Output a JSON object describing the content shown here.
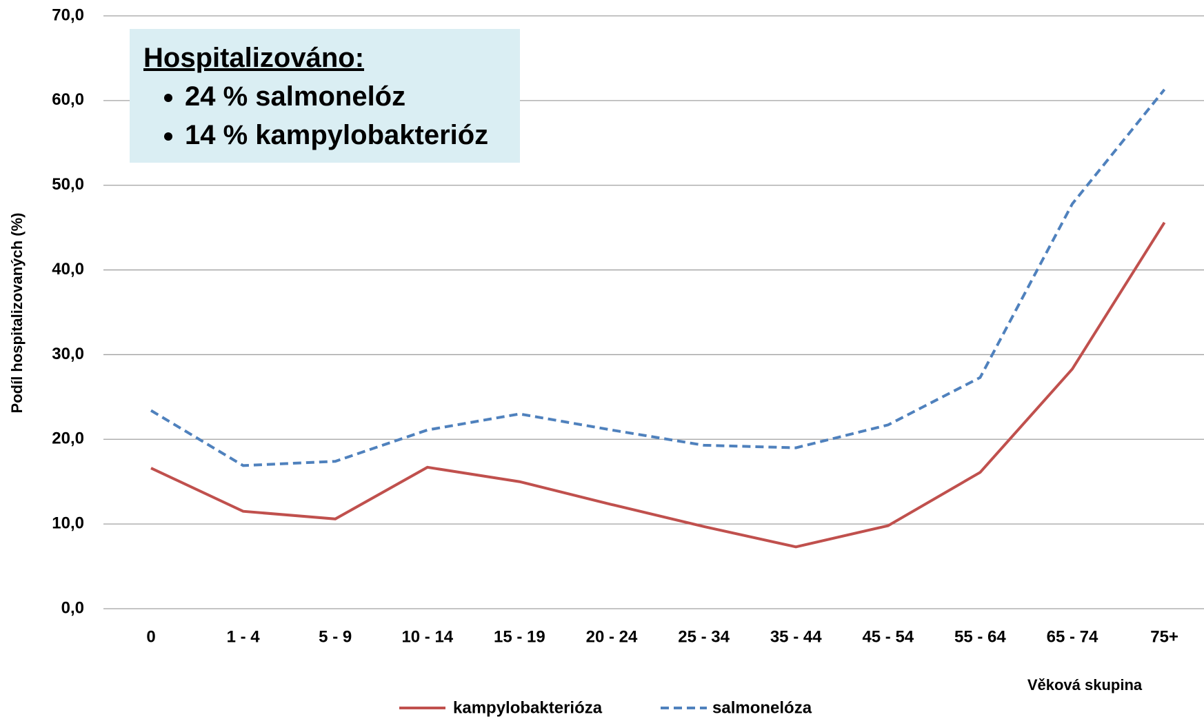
{
  "chart_data": {
    "type": "line",
    "y_axis_label": "Podíl hospitalizovaných (%)",
    "x_axis_label": "Věková skupina",
    "categories": [
      "0",
      "1 - 4",
      "5 - 9",
      "10 - 14",
      "15 - 19",
      "20 - 24",
      "25 - 34",
      "35 - 44",
      "45 - 54",
      "55 - 64",
      "65 - 74",
      "75+"
    ],
    "series": [
      {
        "name": "kampylobakterióza",
        "color": "#c0504d",
        "line_style": "solid",
        "values": [
          16.6,
          11.5,
          10.6,
          16.7,
          15.0,
          12.3,
          9.7,
          7.3,
          9.8,
          16.1,
          28.3,
          45.6
        ]
      },
      {
        "name": "salmonelóza",
        "color": "#4f81bd",
        "line_style": "dashed",
        "values": [
          23.4,
          16.9,
          17.4,
          21.1,
          23.0,
          21.1,
          19.3,
          19.0,
          21.7,
          27.3,
          47.8,
          61.3
        ]
      }
    ],
    "ylim": [
      0,
      70
    ],
    "yticks": [
      {
        "value": 0,
        "label": "0,0"
      },
      {
        "value": 10,
        "label": "10,0"
      },
      {
        "value": 20,
        "label": "20,0"
      },
      {
        "value": 30,
        "label": "30,0"
      },
      {
        "value": 40,
        "label": "40,0"
      },
      {
        "value": 50,
        "label": "50,0"
      },
      {
        "value": 60,
        "label": "60,0"
      },
      {
        "value": 70,
        "label": "70,0"
      }
    ],
    "grid": true,
    "legend": "bottom",
    "annotation": {
      "title": "Hospitalizováno:",
      "items": [
        "24 % salmonelóz",
        "14 % kampylobakterióz"
      ]
    }
  }
}
